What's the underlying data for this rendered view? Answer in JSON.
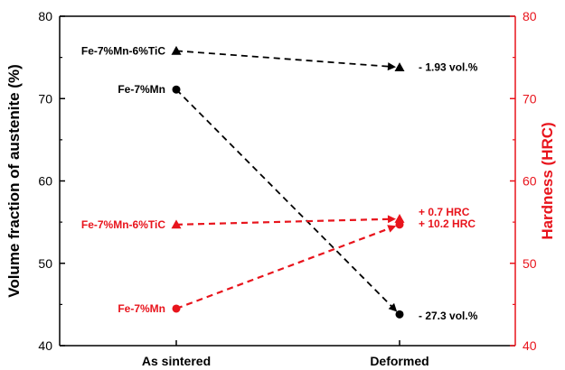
{
  "chart_data": {
    "type": "line",
    "categories": [
      "As sintered",
      "Deformed"
    ],
    "left_axis": {
      "label": "Volume fraction of austenite (%)",
      "ylim": [
        40,
        80
      ],
      "ticks": [
        "40",
        "50",
        "60",
        "70",
        "80"
      ],
      "color": "#000000"
    },
    "right_axis": {
      "label": "Hardness (HRC)",
      "ylim": [
        40,
        80
      ],
      "ticks": [
        "40",
        "50",
        "60",
        "70",
        "80"
      ],
      "color": "#e8141c"
    },
    "series": [
      {
        "name": "Fe-7%Mn-6%TiC",
        "axis": "left",
        "marker": "triangle",
        "color": "#000000",
        "values": [
          75.8,
          73.8
        ]
      },
      {
        "name": "Fe-7%Mn",
        "axis": "left",
        "marker": "circle",
        "color": "#000000",
        "values": [
          71.1,
          43.8
        ]
      },
      {
        "name": "Fe-7%Mn-6%TiC",
        "axis": "right",
        "marker": "triangle",
        "color": "#e8141c",
        "values": [
          54.7,
          55.4
        ]
      },
      {
        "name": "Fe-7%Mn",
        "axis": "right",
        "marker": "circle",
        "color": "#e8141c",
        "values": [
          44.5,
          54.7
        ]
      }
    ],
    "annotations": [
      {
        "text": "- 1.93 vol.%",
        "color": "#000000",
        "axis": "left",
        "y": 73.8
      },
      {
        "text": "- 27.3 vol.%",
        "color": "#000000",
        "axis": "left",
        "y": 43.6
      },
      {
        "text": "+ 0.7 HRC",
        "color": "#e8141c",
        "axis": "right",
        "y": 56.2
      },
      {
        "text": "+ 10.2 HRC",
        "color": "#e8141c",
        "axis": "right",
        "y": 54.8
      }
    ],
    "grid": false,
    "legend": "inline labels next to start points"
  }
}
